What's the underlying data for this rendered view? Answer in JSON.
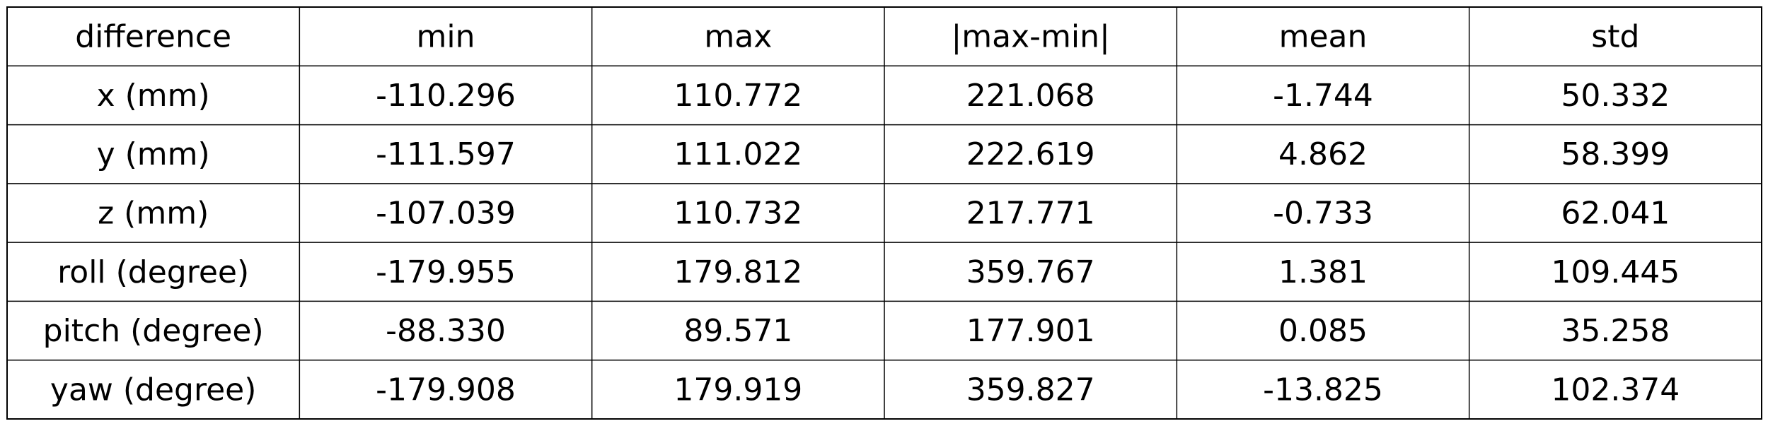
{
  "chart_data": {
    "type": "table",
    "columns": [
      "difference",
      "min",
      "max",
      "|max-min|",
      "mean",
      "std"
    ],
    "rows": [
      [
        "x (mm)",
        "-110.296",
        "110.772",
        "221.068",
        "-1.744",
        "50.332"
      ],
      [
        "y (mm)",
        "-111.597",
        "111.022",
        "222.619",
        "4.862",
        "58.399"
      ],
      [
        "z (mm)",
        "-107.039",
        "110.732",
        "217.771",
        "-0.733",
        "62.041"
      ],
      [
        "roll (degree)",
        "-179.955",
        "179.812",
        "359.767",
        "1.381",
        "109.445"
      ],
      [
        "pitch (degree)",
        "-88.330",
        "89.571",
        "177.901",
        "0.085",
        "35.258"
      ],
      [
        "yaw (degree)",
        "-179.908",
        "179.919",
        "359.827",
        "-13.825",
        "102.374"
      ]
    ],
    "grid": true,
    "grid_color": "#000000",
    "background": "#ffffff"
  }
}
